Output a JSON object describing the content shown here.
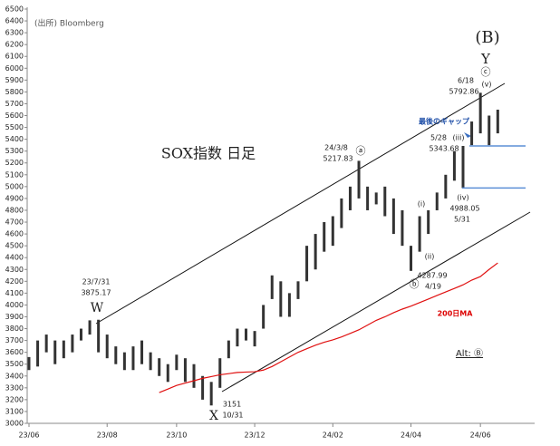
{
  "chart_data": {
    "type": "range",
    "categories": [
      "23/06",
      null,
      null,
      null,
      null,
      null,
      null,
      null,
      null,
      "23/08",
      null,
      null,
      null,
      null,
      null,
      null,
      null,
      "23/10",
      null,
      null,
      null,
      null,
      null,
      null,
      null,
      null,
      "23/12",
      null,
      null,
      null,
      null,
      null,
      null,
      null,
      null,
      "24/02",
      null,
      null,
      null,
      null,
      null,
      null,
      null,
      null,
      "24/04",
      null,
      null,
      null,
      null,
      null,
      null,
      null,
      "24/06",
      null,
      null
    ],
    "high": [
      3560,
      3700,
      3750,
      3700,
      3700,
      3750,
      3800,
      3870,
      3875.17,
      3750,
      3650,
      3600,
      3650,
      3700,
      3600,
      3550,
      3500,
      3580,
      3550,
      3500,
      3400,
      3350,
      3550,
      3700,
      3800,
      3800,
      3780,
      4000,
      4250,
      4200,
      4100,
      4200,
      4500,
      4600,
      4700,
      4750,
      4900,
      5000,
      5217.83,
      5000,
      4950,
      5000,
      4900,
      4800,
      4500,
      4750,
      4800,
      4950,
      5100,
      5300,
      5343.68,
      5550,
      5792.86,
      5600,
      5650
    ],
    "low": [
      3450,
      3480,
      3600,
      3500,
      3550,
      3600,
      3700,
      3750,
      3600,
      3550,
      3500,
      3450,
      3450,
      3500,
      3450,
      3400,
      3350,
      3450,
      3350,
      3300,
      3200,
      3151,
      3300,
      3550,
      3650,
      3700,
      3650,
      3800,
      4050,
      3900,
      3900,
      4050,
      4200,
      4300,
      4450,
      4500,
      4650,
      4800,
      4900,
      4800,
      4850,
      4750,
      4600,
      4500,
      4287.99,
      4450,
      4600,
      4800,
      4900,
      5050,
      4988.05,
      5350,
      5450,
      5350,
      5450
    ],
    "color": "#333333",
    "ma": {
      "name": "200日MA",
      "color": "#e01010",
      "values": [
        null,
        null,
        null,
        null,
        null,
        null,
        null,
        null,
        null,
        null,
        null,
        null,
        null,
        null,
        null,
        3260,
        3290,
        3320,
        3340,
        3360,
        3380,
        3395,
        3410,
        3420,
        3430,
        3433,
        3436,
        3450,
        3480,
        3520,
        3560,
        3600,
        3630,
        3660,
        3685,
        3705,
        3730,
        3760,
        3790,
        3830,
        3870,
        3900,
        3935,
        3965,
        3990,
        4020,
        4050,
        4080,
        4110,
        4140,
        4170,
        4210,
        4240,
        4300,
        4355
      ]
    },
    "levels": [
      5343.68,
      4988.05
    ],
    "level_color": "#5b8fd6",
    "ylim": [
      3000,
      6500
    ],
    "yticks": [
      3000,
      3100,
      3200,
      3300,
      3400,
      3500,
      3600,
      3700,
      3800,
      3900,
      4000,
      4100,
      4200,
      4300,
      4400,
      4500,
      4600,
      4700,
      4800,
      4900,
      5000,
      5100,
      5200,
      5300,
      5400,
      5500,
      5600,
      5700,
      5800,
      5900,
      6000,
      6100,
      6200,
      6300,
      6400,
      6500
    ],
    "annotations": [
      "(出所)  Bloomberg",
      "SOX指数 日足",
      "(B)",
      "Y",
      "ⓒ",
      "(v)",
      "6/18",
      "5792.86",
      "最後のギャップ",
      "5/28",
      "(iii)",
      "5343.68",
      "(iv)",
      "4988.05",
      "5/31",
      "(i)",
      "(ii)",
      "4287.99",
      "ⓑ",
      "4/19",
      "ⓐ",
      "24/3/8",
      "5217.83",
      "23/7/31",
      "3875.17",
      "W",
      "X",
      "3151",
      "10/31",
      "200日MA",
      "Alt: Ⓑ"
    ]
  }
}
